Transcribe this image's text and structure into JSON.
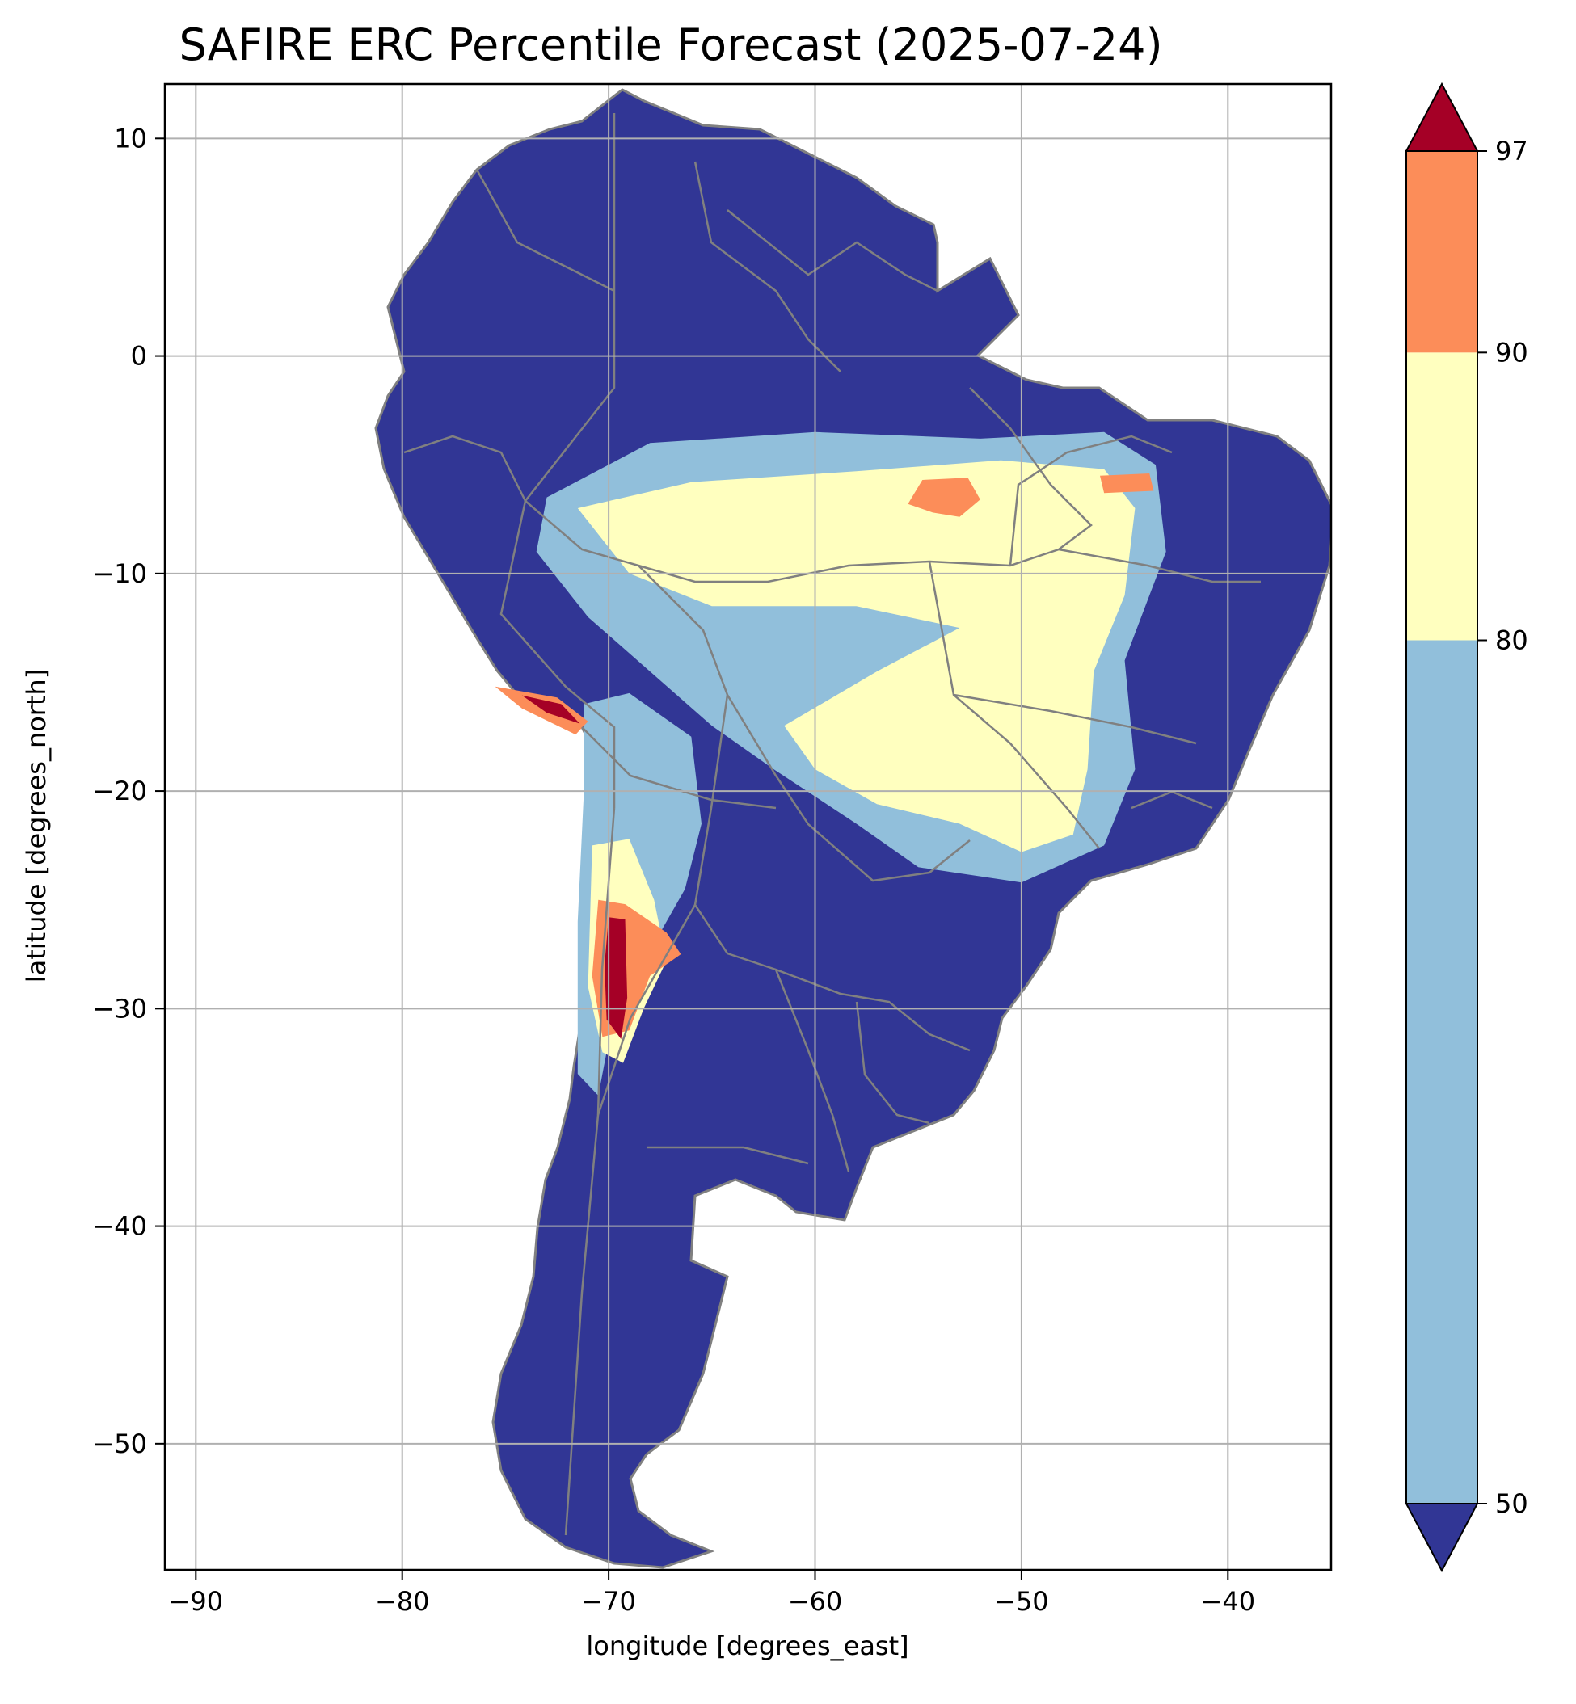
{
  "title": "SAFIRE ERC Percentile Forecast (2025-07-24)",
  "x_axis": {
    "label": "longitude [degrees_east]",
    "range": [
      -91.5,
      -35.0
    ],
    "ticks": [
      -90,
      -80,
      -70,
      -60,
      -50,
      -40
    ],
    "tick_labels": [
      "−90",
      "−80",
      "−70",
      "−60",
      "−50",
      "−40"
    ]
  },
  "y_axis": {
    "label": "latitude [degrees_north]",
    "range": [
      -55.8,
      12.5
    ],
    "ticks": [
      10,
      0,
      -10,
      -20,
      -30,
      -40,
      -50
    ],
    "tick_labels": [
      "10",
      "0",
      "−10",
      "−20",
      "−30",
      "−40",
      "−50"
    ]
  },
  "grid": true,
  "colorbar": {
    "orientation": "vertical",
    "placement": "right",
    "extend": "both",
    "boundaries": [
      50,
      80,
      90,
      97
    ],
    "tick_labels": [
      "50",
      "80",
      "90",
      "97"
    ],
    "colors": {
      "below_50": "#313695",
      "50_80": "#91bfdb",
      "80_90": "#ffffbf",
      "90_97": "#fc8d59",
      "above_97": "#a50026"
    }
  },
  "map_colors": {
    "land_base": "#313695",
    "border": "#808080",
    "gridline": "#b0b0b0"
  },
  "chart_data": {
    "type": "heatmap",
    "region": "South America",
    "variable": "ERC percentile",
    "date": "2025-07-24",
    "xlim": [
      -91.5,
      -35.0
    ],
    "ylim": [
      -55.8,
      12.5
    ],
    "percentile_zones": [
      {
        "class": "50-80",
        "polygon": [
          [
            -73,
            -6.5
          ],
          [
            -68,
            -4
          ],
          [
            -60,
            -3.5
          ],
          [
            -52,
            -3.8
          ],
          [
            -46,
            -3.5
          ],
          [
            -43.5,
            -5
          ],
          [
            -43,
            -9
          ],
          [
            -45,
            -14
          ],
          [
            -44.5,
            -19
          ],
          [
            -46,
            -22.5
          ],
          [
            -50,
            -24.2
          ],
          [
            -55,
            -23.5
          ],
          [
            -58,
            -21.5
          ],
          [
            -62,
            -19
          ],
          [
            -65,
            -17
          ],
          [
            -68,
            -14.5
          ],
          [
            -71,
            -12
          ],
          [
            -73.5,
            -9
          ]
        ]
      },
      {
        "class": "50-80",
        "polygon": [
          [
            -71.2,
            -16
          ],
          [
            -69,
            -15.5
          ],
          [
            -66,
            -17.5
          ],
          [
            -65.5,
            -21.5
          ],
          [
            -66.3,
            -24.5
          ],
          [
            -67.5,
            -26.5
          ],
          [
            -70,
            -31.5
          ],
          [
            -70.5,
            -34
          ],
          [
            -71.5,
            -33
          ],
          [
            -71.5,
            -26
          ],
          [
            -71.2,
            -20
          ]
        ]
      },
      {
        "class": "80-90",
        "polygon": [
          [
            -71.5,
            -7
          ],
          [
            -66,
            -5.8
          ],
          [
            -58,
            -5.3
          ],
          [
            -51,
            -4.8
          ],
          [
            -46,
            -5.2
          ],
          [
            -44.5,
            -7
          ],
          [
            -45,
            -11
          ],
          [
            -46.5,
            -14.5
          ],
          [
            -46.8,
            -19
          ],
          [
            -47.5,
            -22
          ],
          [
            -50,
            -22.8
          ],
          [
            -53,
            -21.5
          ],
          [
            -57,
            -20.6
          ],
          [
            -60,
            -19
          ],
          [
            -61.5,
            -17
          ],
          [
            -57,
            -14.5
          ],
          [
            -53,
            -12.5
          ],
          [
            -58,
            -11.5
          ],
          [
            -65,
            -11.5
          ],
          [
            -69,
            -10
          ]
        ]
      },
      {
        "class": "80-90",
        "polygon": [
          [
            -70.8,
            -22.5
          ],
          [
            -69,
            -22.2
          ],
          [
            -67.8,
            -25
          ],
          [
            -67.2,
            -27.8
          ],
          [
            -68.3,
            -30
          ],
          [
            -69.3,
            -32.5
          ],
          [
            -70.3,
            -32
          ],
          [
            -71,
            -29
          ]
        ]
      },
      {
        "class": "90-97",
        "polygon": [
          [
            -54.8,
            -5.7
          ],
          [
            -52.6,
            -5.6
          ],
          [
            -52,
            -6.6
          ],
          [
            -53,
            -7.4
          ],
          [
            -54.3,
            -7.2
          ],
          [
            -55.5,
            -6.8
          ]
        ]
      },
      {
        "class": "90-97",
        "polygon": [
          [
            -46.2,
            -5.5
          ],
          [
            -43.8,
            -5.4
          ],
          [
            -43.6,
            -6.2
          ],
          [
            -46,
            -6.3
          ]
        ]
      },
      {
        "class": "90-97",
        "polygon": [
          [
            -75.5,
            -15.2
          ],
          [
            -72.5,
            -15.7
          ],
          [
            -71,
            -16.8
          ],
          [
            -71.6,
            -17.4
          ],
          [
            -74.2,
            -16.2
          ]
        ]
      },
      {
        "class": "90-97",
        "polygon": [
          [
            -70.5,
            -25
          ],
          [
            -69.2,
            -25.2
          ],
          [
            -67.2,
            -26.5
          ],
          [
            -66.5,
            -27.5
          ],
          [
            -68,
            -28.5
          ],
          [
            -69,
            -31
          ],
          [
            -70.3,
            -31.3
          ],
          [
            -70.8,
            -28.5
          ]
        ]
      },
      {
        "class": ">97",
        "polygon": [
          [
            -74.2,
            -15.6
          ],
          [
            -72.3,
            -16
          ],
          [
            -71.4,
            -16.9
          ],
          [
            -73,
            -16.4
          ]
        ]
      },
      {
        "class": ">97",
        "polygon": [
          [
            -70,
            -25.8
          ],
          [
            -69.2,
            -25.9
          ],
          [
            -69.1,
            -29.5
          ],
          [
            -69.4,
            -31.4
          ],
          [
            -70.1,
            -30.5
          ],
          [
            -70.2,
            -28
          ]
        ]
      }
    ]
  }
}
